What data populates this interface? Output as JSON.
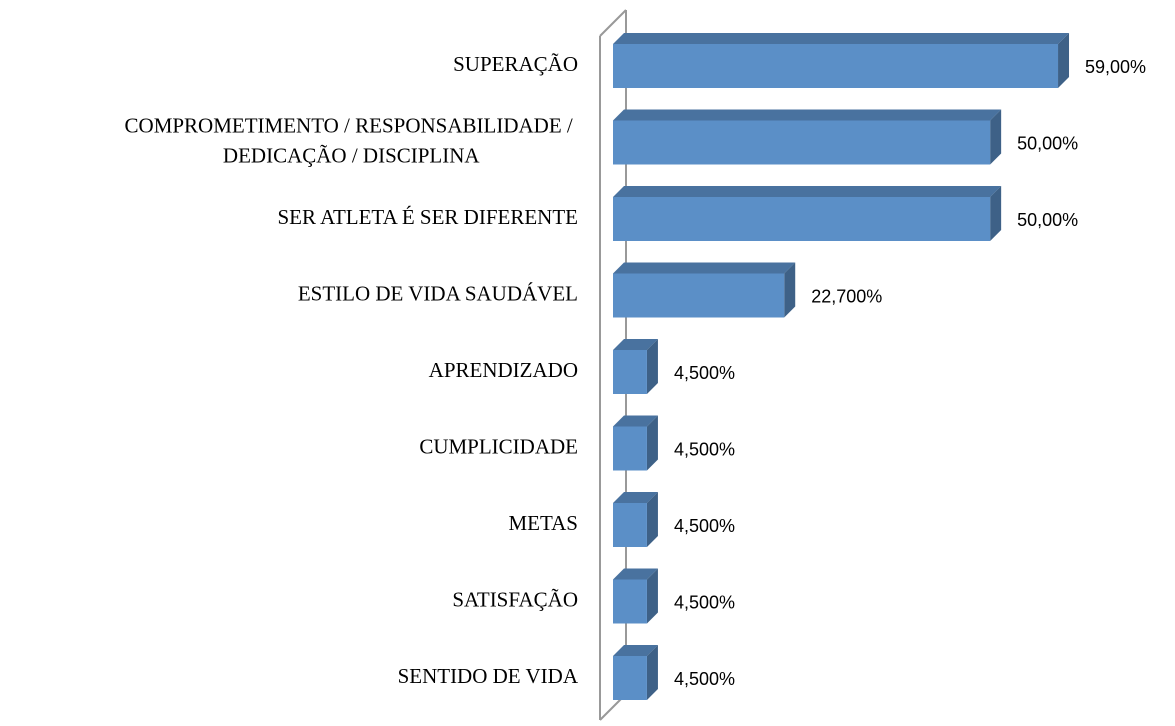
{
  "chart_data": {
    "type": "bar3d-horizontal",
    "categories": [
      "SUPERAÇÃO",
      "COMPROMETIMENTO / RESPONSABILIDADE / DEDICAÇÃO / DISCIPLINA",
      "SER ATLETA É SER DIFERENTE",
      "ESTILO DE VIDA SAUDÁVEL",
      "APRENDIZADO",
      "CUMPLICIDADE",
      "METAS",
      "SATISFAÇÃO",
      "SENTIDO DE VIDA"
    ],
    "values": [
      59,
      50,
      50,
      22.7,
      4.5,
      4.5,
      4.5,
      4.5,
      4.5
    ],
    "value_labels": [
      "59,00%",
      "50,00%",
      "50,00%",
      "22,700%",
      "4,500%",
      "4,500%",
      "4,500%",
      "4,500%",
      "4,500%"
    ],
    "color": "#5b8fc7",
    "xlim": [
      0,
      70
    ]
  }
}
